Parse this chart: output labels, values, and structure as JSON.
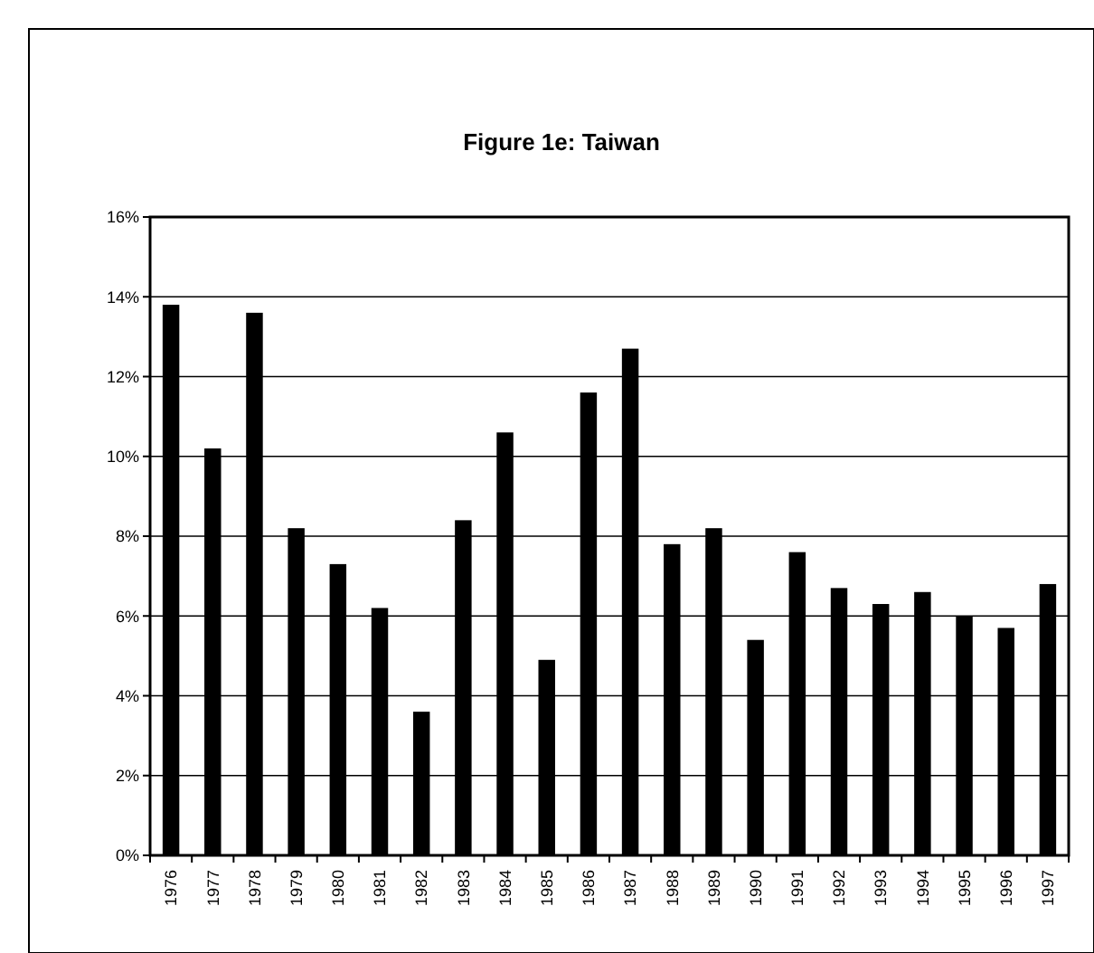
{
  "chart_data": {
    "type": "bar",
    "title": "Figure 1e:  Taiwan",
    "categories": [
      "1976",
      "1977",
      "1978",
      "1979",
      "1980",
      "1981",
      "1982",
      "1983",
      "1984",
      "1985",
      "1986",
      "1987",
      "1988",
      "1989",
      "1990",
      "1991",
      "1992",
      "1993",
      "1994",
      "1995",
      "1996",
      "1997"
    ],
    "values": [
      13.8,
      10.2,
      13.6,
      8.2,
      7.3,
      6.2,
      3.6,
      8.4,
      10.6,
      4.9,
      11.6,
      12.7,
      7.8,
      8.2,
      5.4,
      7.6,
      6.7,
      6.3,
      6.6,
      6.0,
      5.7,
      6.8
    ],
    "color": "#000000",
    "ylim": [
      0,
      16
    ],
    "yticks": [
      {
        "value": 0,
        "label": "0%"
      },
      {
        "value": 2,
        "label": "2%"
      },
      {
        "value": 4,
        "label": "4%"
      },
      {
        "value": 6,
        "label": "6%"
      },
      {
        "value": 8,
        "label": "8%"
      },
      {
        "value": 10,
        "label": "10%"
      },
      {
        "value": 12,
        "label": "12%"
      },
      {
        "value": 14,
        "label": "14%"
      },
      {
        "value": 16,
        "label": "16%"
      }
    ],
    "grid": "y"
  }
}
